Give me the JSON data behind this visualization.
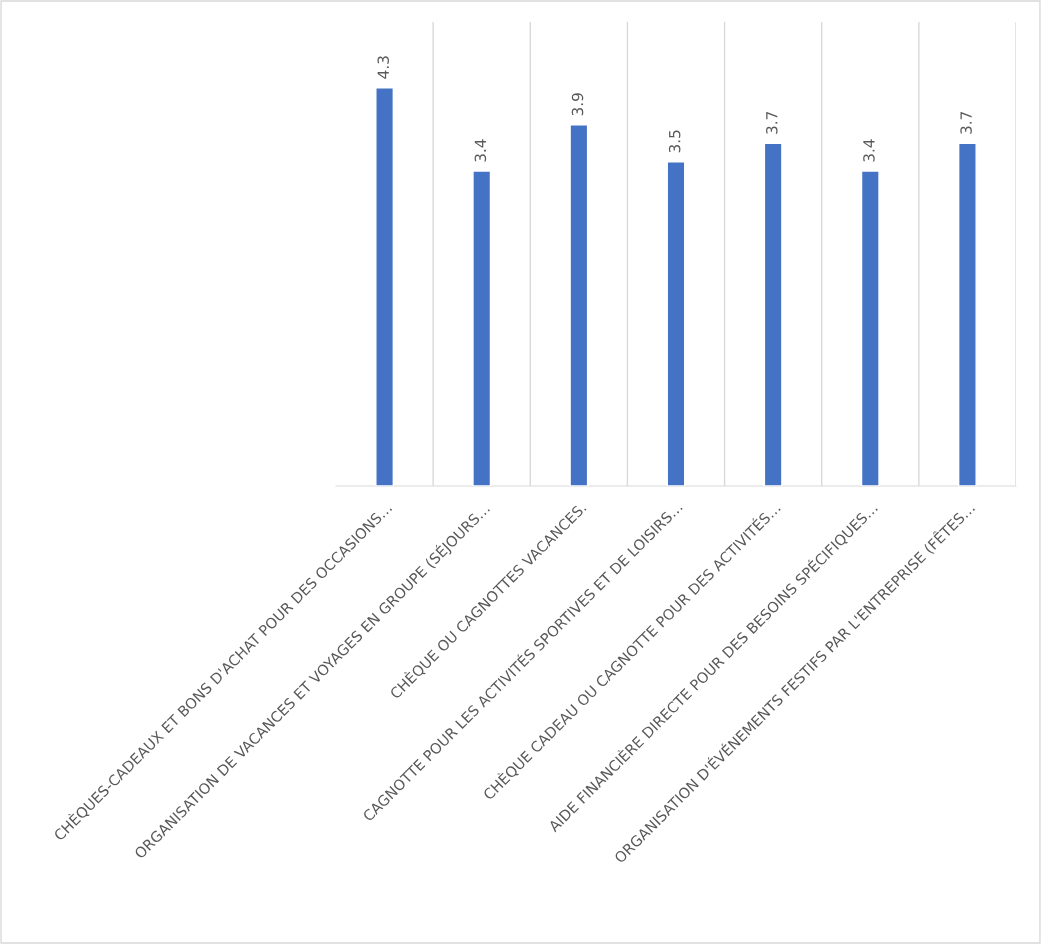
{
  "chart_data": {
    "type": "bar",
    "categories": [
      "CHÈQUES-CADEAUX ET BONS D'ACHAT POUR DES OCCASIONS…",
      "ORGANISATION DE VACANCES ET VOYAGES EN GROUPE (SÉJOURS…",
      "CHÈQUE OU CAGNOTTES VACANCES.",
      "CAGNOTTE POUR LES ACTIVITÉS SPORTIVES ET DE LOISIRS…",
      "CHÈQUE CADEAU OU CAGNOTTE POUR DES ACTIVITÉS…",
      "AIDE FINANCIÈRE DIRECTE POUR DES BESOINS SPÉCIFIQUES…",
      "ORGANISATION D'ÉVÉNEMENTS FESTIFS PAR L'ENTREPRISE (FÊTES…"
    ],
    "values": [
      4.3,
      3.4,
      3.9,
      3.5,
      3.7,
      3.4,
      3.7
    ],
    "color": "#4472c4",
    "data_labels": true,
    "grid": "x"
  }
}
